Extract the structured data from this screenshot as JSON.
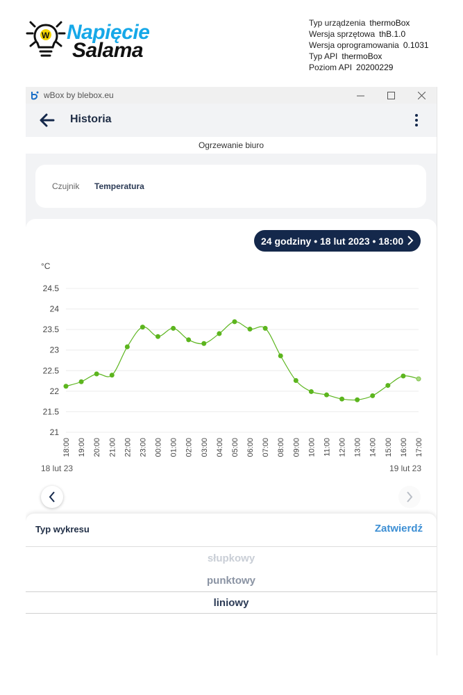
{
  "brand": {
    "line1": "Napięcie",
    "line2": "Salama"
  },
  "device_info": [
    {
      "key": "Typ urządzenia",
      "value": "thermoBox"
    },
    {
      "key": "Wersja sprzętowa",
      "value": "thB.1.0"
    },
    {
      "key": "Wersja oprogramowania",
      "value": "0.1031"
    },
    {
      "key": "Typ API",
      "value": "thermoBox"
    },
    {
      "key": "Poziom API",
      "value": "20200229"
    }
  ],
  "window": {
    "title": "wBox by blebox.eu",
    "icon": "blebox-logo-icon"
  },
  "appbar": {
    "title": "Historia"
  },
  "device_name": "Ogrzewanie biuro",
  "sensor": {
    "label": "Czujnik",
    "value": "Temperatura"
  },
  "period": {
    "label": "24 godziny • 18 lut 2023 • 18:00"
  },
  "chart_data": {
    "type": "line",
    "ylabel": "°C",
    "ylim": [
      21,
      24.5
    ],
    "yticks": [
      "24.5",
      "24",
      "23.5",
      "23",
      "22.5",
      "22",
      "21.5",
      "21"
    ],
    "xticks": [
      "18:00",
      "19:00",
      "20:00",
      "21:00",
      "22:00",
      "23:00",
      "00:00",
      "01:00",
      "02:00",
      "03:00",
      "04:00",
      "05:00",
      "06:00",
      "07:00",
      "08:00",
      "09:00",
      "10:00",
      "11:00",
      "12:00",
      "13:00",
      "14:00",
      "15:00",
      "16:00",
      "17:00"
    ],
    "start_date_label": "18 lut 23",
    "end_date_label": "19 lut 23",
    "series": [
      {
        "color": "#5cb51e",
        "values": [
          22.12,
          22.23,
          22.42,
          22.39,
          23.08,
          23.56,
          23.33,
          23.53,
          23.25,
          23.16,
          23.4,
          23.69,
          23.51,
          23.53,
          22.86,
          22.26,
          21.99,
          21.91,
          21.81,
          21.79,
          21.89,
          22.14,
          22.37,
          22.3
        ]
      }
    ],
    "grid": true
  },
  "sheet": {
    "title": "Typ wykresu",
    "confirm": "Zatwierdź",
    "options": [
      "słupkowy",
      "punktowy",
      "liniowy"
    ],
    "selected": "liniowy"
  }
}
